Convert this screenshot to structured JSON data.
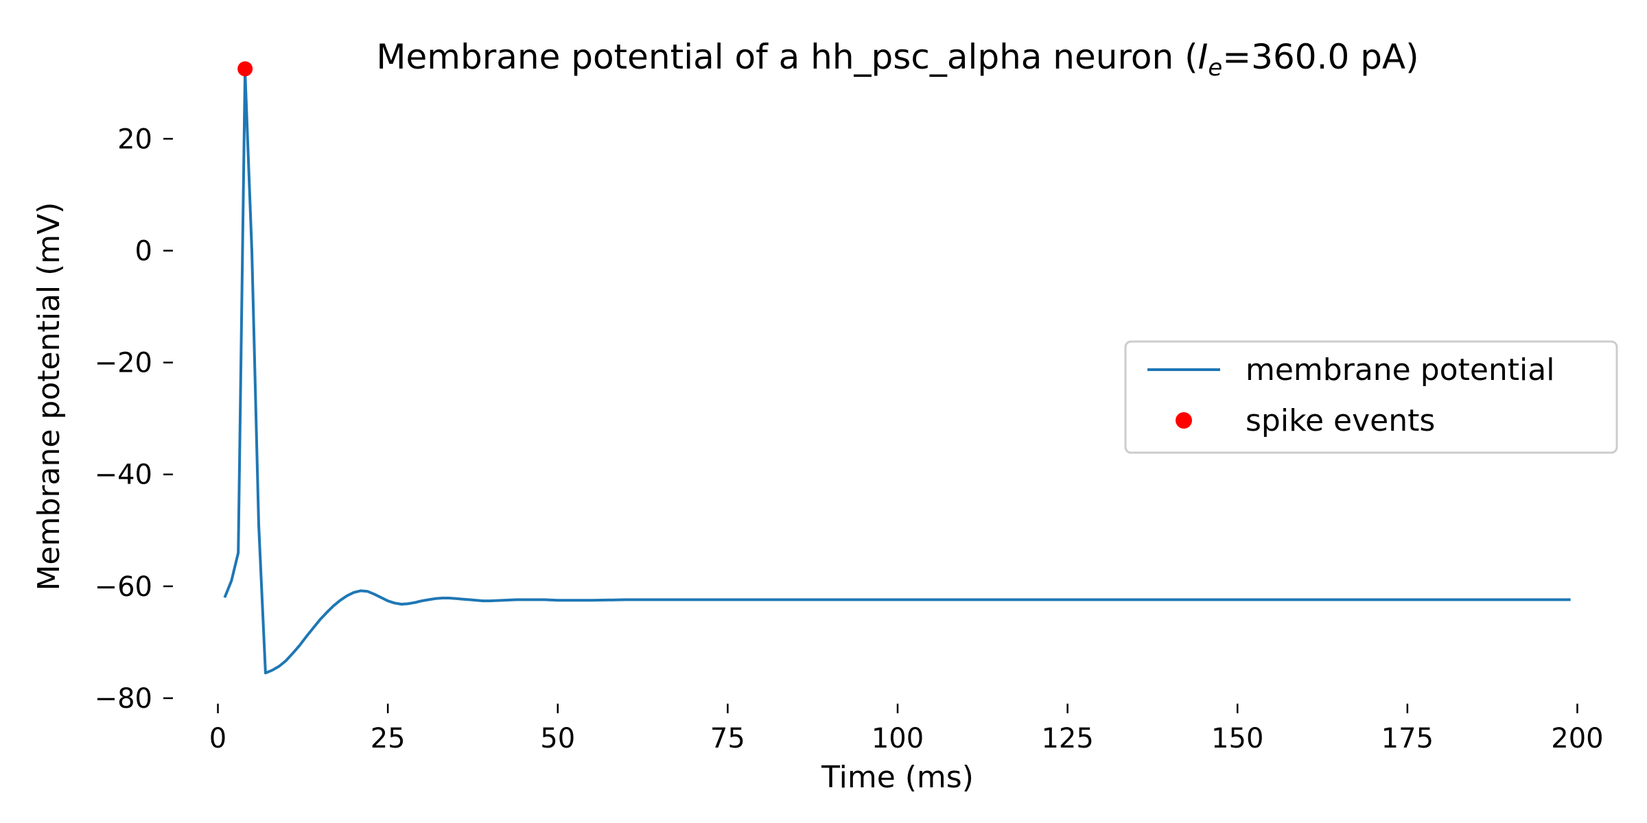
{
  "chart_data": {
    "type": "line",
    "title": {
      "prefix": "Membrane potential of a hh_psc_alpha neuron (",
      "var": "I",
      "sub": "e",
      "suffix": "=360.0 pA)"
    },
    "xlabel": "Time (ms)",
    "ylabel": "Membrane potential (mV)",
    "xlim": [
      -5,
      205
    ],
    "ylim": [
      -80,
      35
    ],
    "xticks": [
      0,
      25,
      50,
      75,
      100,
      125,
      150,
      175,
      200
    ],
    "xtick_labels": [
      "0",
      "25",
      "50",
      "75",
      "100",
      "125",
      "150",
      "175",
      "200"
    ],
    "yticks": [
      -80,
      -60,
      -40,
      -20,
      0,
      20
    ],
    "ytick_labels": [
      "−80",
      "−60",
      "−40",
      "−20",
      "0",
      "20"
    ],
    "grid": false,
    "legend_position": "center-right",
    "series": [
      {
        "name": "membrane potential",
        "kind": "line",
        "color": "#1f77b4",
        "x": [
          1,
          2,
          3,
          4,
          5,
          6,
          7,
          8,
          9,
          10,
          11,
          12,
          13,
          14,
          15,
          16,
          17,
          18,
          19,
          20,
          21,
          22,
          23,
          24,
          25,
          26,
          27,
          28,
          29,
          30,
          31,
          32,
          33,
          34,
          35,
          36,
          37,
          38,
          39,
          40,
          42,
          44,
          46,
          48,
          50,
          55,
          60,
          70,
          80,
          100,
          120,
          140,
          160,
          180,
          199
        ],
        "y": [
          -62.0,
          -59.0,
          -54.0,
          32.0,
          0.0,
          -49.0,
          -75.5,
          -75.0,
          -74.3,
          -73.3,
          -72.0,
          -70.6,
          -69.0,
          -67.5,
          -66.0,
          -64.7,
          -63.5,
          -62.5,
          -61.7,
          -61.1,
          -60.8,
          -60.9,
          -61.4,
          -62.0,
          -62.6,
          -63.0,
          -63.2,
          -63.1,
          -62.9,
          -62.6,
          -62.4,
          -62.2,
          -62.1,
          -62.1,
          -62.2,
          -62.3,
          -62.4,
          -62.5,
          -62.6,
          -62.6,
          -62.5,
          -62.4,
          -62.4,
          -62.4,
          -62.5,
          -62.5,
          -62.4,
          -62.4,
          -62.4,
          -62.4,
          -62.4,
          -62.4,
          -62.4,
          -62.4,
          -62.4
        ]
      },
      {
        "name": "spike events",
        "kind": "scatter",
        "color": "#ff0000",
        "x": [
          4
        ],
        "y": [
          32.5
        ]
      }
    ]
  }
}
